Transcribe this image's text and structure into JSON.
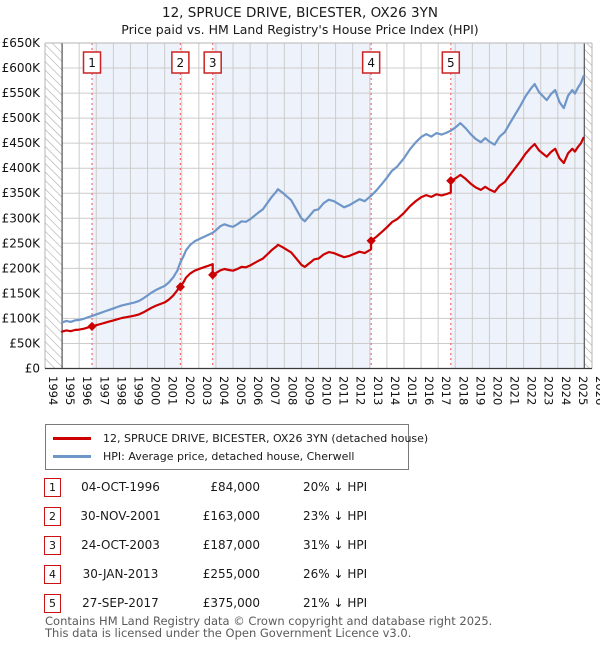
{
  "title": "12, SPRUCE DRIVE, BICESTER, OX26 3YN",
  "subtitle": "Price paid vs. HM Land Registry's House Price Index (HPI)",
  "legend": [
    {
      "label": "12, SPRUCE DRIVE, BICESTER, OX26 3YN (detached house)",
      "color": "#cc0000"
    },
    {
      "label": "HPI: Average price, detached house, Cherwell",
      "color": "#6e96c8"
    }
  ],
  "chart_data": {
    "type": "line",
    "x_axis": {
      "start": 1994,
      "end": 2026,
      "tick_labels": [
        "1994",
        "1995",
        "1996",
        "1997",
        "1998",
        "1999",
        "2000",
        "2001",
        "2002",
        "2003",
        "2004",
        "2005",
        "2006",
        "2007",
        "2008",
        "2009",
        "2010",
        "2011",
        "2012",
        "2013",
        "2014",
        "2015",
        "2016",
        "2017",
        "2018",
        "2019",
        "2020",
        "2021",
        "2022",
        "2023",
        "2024",
        "2025",
        "2026"
      ]
    },
    "y_axis": {
      "min": 0,
      "max": 650000,
      "tick_step": 50000,
      "unit": "GBP",
      "tick_labels": [
        "£0",
        "£50K",
        "£100K",
        "£150K",
        "£200K",
        "£250K",
        "£300K",
        "£350K",
        "£400K",
        "£450K",
        "£500K",
        "£550K",
        "£600K",
        "£650K"
      ]
    },
    "grid": true,
    "legend_position": "below",
    "band_colors": [
      "#ffffff",
      "#eef2fa"
    ],
    "no_data_hatch": {
      "left_end_year": 1995.0,
      "right_start_year": 2025.55
    },
    "series": [
      {
        "name": "HPI: Average price, detached house, Cherwell",
        "color": "#6e96c8",
        "unit": "GBP_thousands",
        "points": [
          [
            1995.0,
            92
          ],
          [
            1995.25,
            95
          ],
          [
            1995.5,
            93
          ],
          [
            1995.75,
            96
          ],
          [
            1996.0,
            97
          ],
          [
            1996.25,
            99
          ],
          [
            1996.5,
            102
          ],
          [
            1996.75,
            105
          ],
          [
            1997.0,
            108
          ],
          [
            1997.25,
            111
          ],
          [
            1997.5,
            114
          ],
          [
            1997.75,
            117
          ],
          [
            1998.0,
            120
          ],
          [
            1998.25,
            123
          ],
          [
            1998.5,
            126
          ],
          [
            1998.75,
            128
          ],
          [
            1999.0,
            130
          ],
          [
            1999.25,
            132
          ],
          [
            1999.5,
            135
          ],
          [
            1999.75,
            140
          ],
          [
            2000.0,
            146
          ],
          [
            2000.25,
            152
          ],
          [
            2000.5,
            157
          ],
          [
            2000.75,
            161
          ],
          [
            2001.0,
            165
          ],
          [
            2001.25,
            172
          ],
          [
            2001.5,
            182
          ],
          [
            2001.75,
            196
          ],
          [
            2001.92,
            212
          ],
          [
            2002.1,
            224
          ],
          [
            2002.25,
            236
          ],
          [
            2002.5,
            247
          ],
          [
            2002.75,
            254
          ],
          [
            2003.0,
            258
          ],
          [
            2003.25,
            262
          ],
          [
            2003.5,
            266
          ],
          [
            2003.81,
            271
          ],
          [
            2004.0,
            276
          ],
          [
            2004.25,
            284
          ],
          [
            2004.5,
            288
          ],
          [
            2004.75,
            285
          ],
          [
            2005.0,
            283
          ],
          [
            2005.25,
            288
          ],
          [
            2005.5,
            294
          ],
          [
            2005.75,
            293
          ],
          [
            2006.0,
            298
          ],
          [
            2006.25,
            305
          ],
          [
            2006.5,
            312
          ],
          [
            2006.75,
            318
          ],
          [
            2007.0,
            330
          ],
          [
            2007.25,
            342
          ],
          [
            2007.5,
            352
          ],
          [
            2007.63,
            358
          ],
          [
            2007.9,
            351
          ],
          [
            2008.1,
            345
          ],
          [
            2008.4,
            336
          ],
          [
            2008.7,
            318
          ],
          [
            2009.0,
            300
          ],
          [
            2009.2,
            294
          ],
          [
            2009.5,
            306
          ],
          [
            2009.75,
            316
          ],
          [
            2010.0,
            318
          ],
          [
            2010.3,
            330
          ],
          [
            2010.6,
            337
          ],
          [
            2010.9,
            334
          ],
          [
            2011.2,
            328
          ],
          [
            2011.5,
            322
          ],
          [
            2011.8,
            326
          ],
          [
            2012.1,
            332
          ],
          [
            2012.4,
            338
          ],
          [
            2012.7,
            334
          ],
          [
            2013.08,
            345
          ],
          [
            2013.4,
            356
          ],
          [
            2013.7,
            368
          ],
          [
            2014.0,
            381
          ],
          [
            2014.3,
            395
          ],
          [
            2014.6,
            403
          ],
          [
            2015.0,
            420
          ],
          [
            2015.35,
            438
          ],
          [
            2015.7,
            452
          ],
          [
            2016.0,
            462
          ],
          [
            2016.3,
            468
          ],
          [
            2016.6,
            463
          ],
          [
            2016.9,
            470
          ],
          [
            2017.2,
            467
          ],
          [
            2017.5,
            471
          ],
          [
            2017.74,
            475
          ],
          [
            2018.0,
            481
          ],
          [
            2018.3,
            490
          ],
          [
            2018.6,
            480
          ],
          [
            2018.9,
            468
          ],
          [
            2019.2,
            458
          ],
          [
            2019.5,
            452
          ],
          [
            2019.75,
            460
          ],
          [
            2020.0,
            453
          ],
          [
            2020.3,
            447
          ],
          [
            2020.6,
            463
          ],
          [
            2020.9,
            472
          ],
          [
            2021.2,
            490
          ],
          [
            2021.5,
            507
          ],
          [
            2021.8,
            524
          ],
          [
            2022.1,
            543
          ],
          [
            2022.4,
            558
          ],
          [
            2022.65,
            568
          ],
          [
            2022.9,
            552
          ],
          [
            2023.1,
            545
          ],
          [
            2023.35,
            536
          ],
          [
            2023.6,
            548
          ],
          [
            2023.85,
            556
          ],
          [
            2024.1,
            532
          ],
          [
            2024.35,
            520
          ],
          [
            2024.6,
            545
          ],
          [
            2024.85,
            556
          ],
          [
            2025.0,
            549
          ],
          [
            2025.2,
            562
          ],
          [
            2025.35,
            570
          ],
          [
            2025.5,
            584
          ]
        ]
      },
      {
        "name": "12, SPRUCE DRIVE, BICESTER, OX26 3YN (detached house)",
        "color": "#cc0000",
        "derived": "hpi_scaled_between_sales",
        "segments": [
          {
            "from": 1995.0,
            "to": 1996.75,
            "ratio": 0.8
          },
          {
            "from": 1996.75,
            "to": 2001.92,
            "ratio": 0.8
          },
          {
            "from": 2001.92,
            "to": 2003.81,
            "ratio": 0.769
          },
          {
            "from": 2003.81,
            "to": 2013.08,
            "ratio": 0.69
          },
          {
            "from": 2013.08,
            "to": 2017.74,
            "ratio": 0.74
          },
          {
            "from": 2017.74,
            "to": 2025.5,
            "ratio": 0.789
          }
        ]
      }
    ],
    "sales": [
      {
        "n": "1",
        "date": "04-OCT-1996",
        "year": 1996.75,
        "price": 84000,
        "price_label": "£84,000",
        "vs_hpi": "20% ↓ HPI"
      },
      {
        "n": "2",
        "date": "30-NOV-2001",
        "year": 2001.92,
        "price": 163000,
        "price_label": "£163,000",
        "vs_hpi": "23% ↓ HPI"
      },
      {
        "n": "3",
        "date": "24-OCT-2003",
        "year": 2003.81,
        "price": 187000,
        "price_label": "£187,000",
        "vs_hpi": "31% ↓ HPI"
      },
      {
        "n": "4",
        "date": "30-JAN-2013",
        "year": 2013.08,
        "price": 255000,
        "price_label": "£255,000",
        "vs_hpi": "26% ↓ HPI"
      },
      {
        "n": "5",
        "date": "27-SEP-2017",
        "year": 2017.74,
        "price": 375000,
        "price_label": "£375,000",
        "vs_hpi": "21% ↓ HPI"
      }
    ]
  },
  "footer": {
    "line1": "Contains HM Land Registry data © Crown copyright and database right 2025.",
    "line2": "This data is licensed under the Open Government Licence v3.0."
  }
}
